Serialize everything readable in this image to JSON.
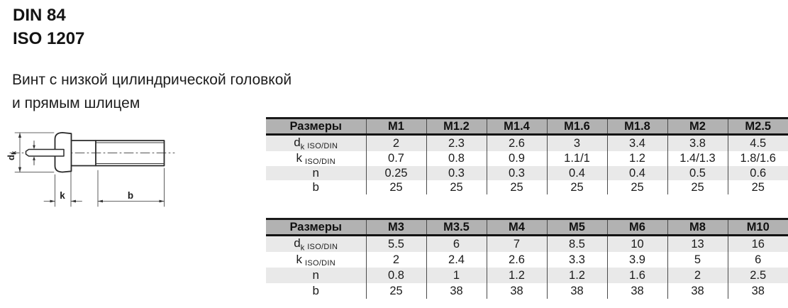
{
  "header": {
    "standard_din": "DIN 84",
    "standard_iso": "ISO 1207",
    "description_line1": "Винт с низкой цилиндрической головкой",
    "description_line2": "и прямым шлицем"
  },
  "drawing": {
    "labels": {
      "dk_main": "d",
      "dk_sub": "k",
      "k": "k",
      "b": "b"
    }
  },
  "tables": [
    {
      "header": [
        "Размеры",
        "M1",
        "M1.2",
        "M1.4",
        "M1.6",
        "M1.8",
        "M2",
        "M2.5"
      ],
      "rows": [
        {
          "label": {
            "main": "d",
            "sub": "k",
            "suffix": "ISO/DIN"
          },
          "values": [
            "2",
            "2.3",
            "2.6",
            "3",
            "3.4",
            "3.8",
            "4.5"
          ]
        },
        {
          "label": {
            "main": "k",
            "suffix": "ISO/DIN"
          },
          "values": [
            "0.7",
            "0.8",
            "0.9",
            "1.1/1",
            "1.2",
            "1.4/1.3",
            "1.8/1.6"
          ]
        },
        {
          "label": {
            "main": "n"
          },
          "values": [
            "0.25",
            "0.3",
            "0.3",
            "0.4",
            "0.4",
            "0.5",
            "0.6"
          ]
        },
        {
          "label": {
            "main": "b"
          },
          "values": [
            "25",
            "25",
            "25",
            "25",
            "25",
            "25",
            "25"
          ]
        }
      ]
    },
    {
      "header": [
        "Размеры",
        "M3",
        "M3.5",
        "M4",
        "M5",
        "M6",
        "M8",
        "M10"
      ],
      "rows": [
        {
          "label": {
            "main": "d",
            "sub": "k",
            "suffix": "ISO/DIN"
          },
          "values": [
            "5.5",
            "6",
            "7",
            "8.5",
            "10",
            "13",
            "16"
          ]
        },
        {
          "label": {
            "main": "k",
            "suffix": "ISO/DIN"
          },
          "values": [
            "2",
            "2.4",
            "2.6",
            "3.3",
            "3.9",
            "5",
            "6"
          ]
        },
        {
          "label": {
            "main": "n"
          },
          "values": [
            "0.8",
            "1",
            "1.2",
            "1.2",
            "1.6",
            "2",
            "2.5"
          ]
        },
        {
          "label": {
            "main": "b"
          },
          "values": [
            "25",
            "38",
            "38",
            "38",
            "38",
            "38",
            "38"
          ]
        }
      ]
    }
  ],
  "colors": {
    "header_row_bg": "#b2b2b2",
    "shaded_row_bg": "#e9e9e9",
    "table_border": "#1a1a1a",
    "column_rule": "#4a4a4a",
    "drawing_line": "#2a2a2a"
  }
}
